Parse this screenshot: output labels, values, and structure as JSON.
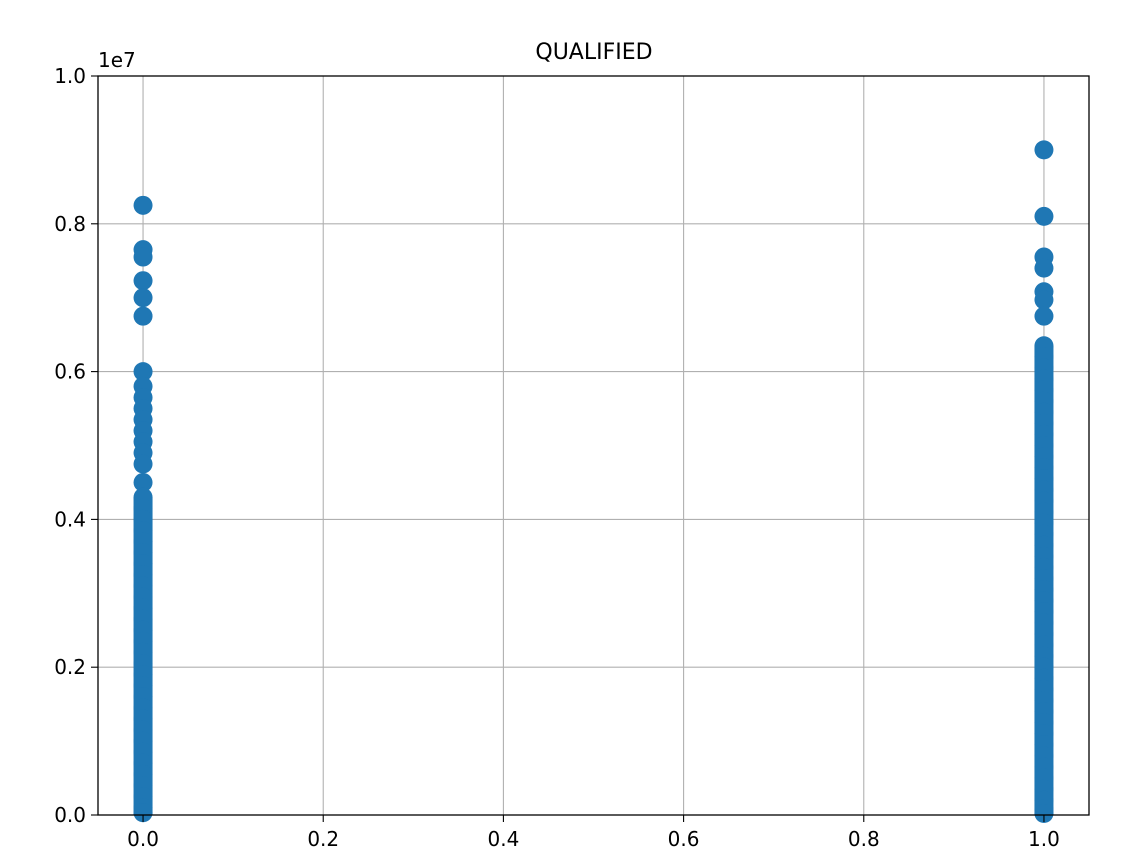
{
  "chart_data": {
    "type": "scatter",
    "title": "QUALIFIED",
    "xlabel": "",
    "ylabel": "",
    "y_offset_label": "1e7",
    "xlim": [
      -0.05,
      1.05
    ],
    "ylim": [
      0,
      1.0
    ],
    "y_scale_note": "values in units of 1e7",
    "xticks": [
      0.0,
      0.2,
      0.4,
      0.6,
      0.8,
      1.0
    ],
    "xtick_labels": [
      "0.0",
      "0.2",
      "0.4",
      "0.6",
      "0.8",
      "1.0"
    ],
    "yticks": [
      0.0,
      0.2,
      0.4,
      0.6,
      0.8,
      1.0
    ],
    "ytick_labels": [
      "0.0",
      "0.2",
      "0.4",
      "0.6",
      "0.8",
      "1.0"
    ],
    "grid": true,
    "color": "#1f77b4",
    "series": [
      {
        "x_category": 0,
        "points": [
          {
            "x": 0,
            "y": 0.825
          },
          {
            "x": 0,
            "y": 0.765
          },
          {
            "x": 0,
            "y": 0.755
          },
          {
            "x": 0,
            "y": 0.723
          },
          {
            "x": 0,
            "y": 0.7
          },
          {
            "x": 0,
            "y": 0.675
          },
          {
            "x": 0,
            "y": 0.6
          },
          {
            "x": 0,
            "y": 0.58
          },
          {
            "x": 0,
            "y": 0.565
          },
          {
            "x": 0,
            "y": 0.55
          },
          {
            "x": 0,
            "y": 0.535
          },
          {
            "x": 0,
            "y": 0.52
          },
          {
            "x": 0,
            "y": 0.505
          },
          {
            "x": 0,
            "y": 0.49
          },
          {
            "x": 0,
            "y": 0.475
          },
          {
            "x": 0,
            "y": 0.45
          },
          {
            "x": 0,
            "y": 0.43
          },
          {
            "x": 0,
            "y": 0.415
          },
          {
            "x": 0,
            "y": 0.4
          },
          {
            "x": 0,
            "y": 0.385
          },
          {
            "x": 0,
            "y": 0.37
          },
          {
            "x": 0,
            "y": 0.355
          },
          {
            "x": 0,
            "y": 0.34
          },
          {
            "x": 0,
            "y": 0.325
          },
          {
            "x": 0,
            "y": 0.31
          },
          {
            "x": 0,
            "y": 0.295
          },
          {
            "x": 0,
            "y": 0.28
          },
          {
            "x": 0,
            "y": 0.265
          },
          {
            "x": 0,
            "y": 0.25
          },
          {
            "x": 0,
            "y": 0.235
          },
          {
            "x": 0,
            "y": 0.22
          },
          {
            "x": 0,
            "y": 0.205
          },
          {
            "x": 0,
            "y": 0.19
          },
          {
            "x": 0,
            "y": 0.175
          },
          {
            "x": 0,
            "y": 0.16
          },
          {
            "x": 0,
            "y": 0.145
          },
          {
            "x": 0,
            "y": 0.13
          },
          {
            "x": 0,
            "y": 0.115
          },
          {
            "x": 0,
            "y": 0.1
          },
          {
            "x": 0,
            "y": 0.085
          },
          {
            "x": 0,
            "y": 0.07
          },
          {
            "x": 0,
            "y": 0.055
          },
          {
            "x": 0,
            "y": 0.04
          },
          {
            "x": 0,
            "y": 0.025
          },
          {
            "x": 0,
            "y": 0.01
          },
          {
            "x": 0,
            "y": 0.003
          }
        ]
      },
      {
        "x_category": 1,
        "points": [
          {
            "x": 1,
            "y": 0.9
          },
          {
            "x": 1,
            "y": 0.81
          },
          {
            "x": 1,
            "y": 0.755
          },
          {
            "x": 1,
            "y": 0.74
          },
          {
            "x": 1,
            "y": 0.708
          },
          {
            "x": 1,
            "y": 0.697
          },
          {
            "x": 1,
            "y": 0.675
          },
          {
            "x": 1,
            "y": 0.635
          },
          {
            "x": 1,
            "y": 0.62
          },
          {
            "x": 1,
            "y": 0.605
          },
          {
            "x": 1,
            "y": 0.59
          },
          {
            "x": 1,
            "y": 0.575
          },
          {
            "x": 1,
            "y": 0.56
          },
          {
            "x": 1,
            "y": 0.545
          },
          {
            "x": 1,
            "y": 0.53
          },
          {
            "x": 1,
            "y": 0.515
          },
          {
            "x": 1,
            "y": 0.5
          },
          {
            "x": 1,
            "y": 0.485
          },
          {
            "x": 1,
            "y": 0.47
          },
          {
            "x": 1,
            "y": 0.455
          },
          {
            "x": 1,
            "y": 0.44
          },
          {
            "x": 1,
            "y": 0.425
          },
          {
            "x": 1,
            "y": 0.41
          },
          {
            "x": 1,
            "y": 0.395
          },
          {
            "x": 1,
            "y": 0.38
          },
          {
            "x": 1,
            "y": 0.365
          },
          {
            "x": 1,
            "y": 0.35
          },
          {
            "x": 1,
            "y": 0.335
          },
          {
            "x": 1,
            "y": 0.32
          },
          {
            "x": 1,
            "y": 0.305
          },
          {
            "x": 1,
            "y": 0.29
          },
          {
            "x": 1,
            "y": 0.275
          },
          {
            "x": 1,
            "y": 0.26
          },
          {
            "x": 1,
            "y": 0.245
          },
          {
            "x": 1,
            "y": 0.23
          },
          {
            "x": 1,
            "y": 0.215
          },
          {
            "x": 1,
            "y": 0.2
          },
          {
            "x": 1,
            "y": 0.185
          },
          {
            "x": 1,
            "y": 0.17
          },
          {
            "x": 1,
            "y": 0.155
          },
          {
            "x": 1,
            "y": 0.14
          },
          {
            "x": 1,
            "y": 0.125
          },
          {
            "x": 1,
            "y": 0.11
          },
          {
            "x": 1,
            "y": 0.095
          },
          {
            "x": 1,
            "y": 0.08
          },
          {
            "x": 1,
            "y": 0.065
          },
          {
            "x": 1,
            "y": 0.05
          },
          {
            "x": 1,
            "y": 0.035
          },
          {
            "x": 1,
            "y": 0.02
          },
          {
            "x": 1,
            "y": 0.008
          },
          {
            "x": 1,
            "y": 0.002
          }
        ]
      }
    ]
  }
}
